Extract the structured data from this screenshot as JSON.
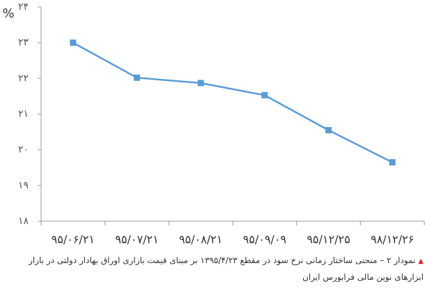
{
  "chart_data": {
    "type": "line",
    "y_label": "%",
    "categories": [
      "۹۵/۰۶/۲۱",
      "۹۵/۰۷/۲۱",
      "۹۵/۰۸/۲۱",
      "۹۵/۰۹/۰۹",
      "۹۵/۱۲/۲۵",
      "۹۸/۱۲/۲۶"
    ],
    "values": [
      23.0,
      22.02,
      21.87,
      21.53,
      20.55,
      19.65
    ],
    "color": "#5b9bd5",
    "ylim": [
      18,
      24
    ],
    "yticks": [
      {
        "value": 18,
        "label": "۱۸"
      },
      {
        "value": 19,
        "label": "۱۹"
      },
      {
        "value": 20,
        "label": "۲۰"
      },
      {
        "value": 21,
        "label": "۲۱"
      },
      {
        "value": 22,
        "label": "۲۲"
      },
      {
        "value": 23,
        "label": "۲۳"
      },
      {
        "value": 24,
        "label": "۲۴"
      }
    ],
    "grid": false,
    "caption": "نمودار ۲ – منحنی ساختار زمانی نرخ سود در مقطع ۱۳۹۵/۴/۲۳ بر مبنای قیمت بازاری اوراق بهادار دولتی در بازار ابزارهای نوین مالی فرابورس ایران"
  }
}
